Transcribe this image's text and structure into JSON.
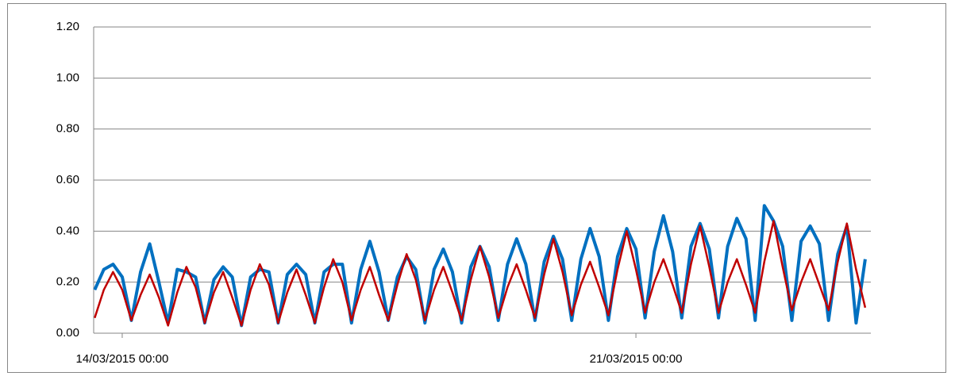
{
  "chart_data": {
    "type": "line",
    "x": [
      "13/03/2015 15:00",
      "13/03/2015 18:00",
      "13/03/2015 21:00",
      "14/03/2015 00:00",
      "14/03/2015 03:00",
      "14/03/2015 06:00",
      "14/03/2015 09:00",
      "14/03/2015 12:00",
      "14/03/2015 15:00",
      "14/03/2015 18:00",
      "14/03/2015 21:00",
      "15/03/2015 00:00",
      "15/03/2015 03:00",
      "15/03/2015 06:00",
      "15/03/2015 09:00",
      "15/03/2015 12:00",
      "15/03/2015 15:00",
      "15/03/2015 18:00",
      "15/03/2015 21:00",
      "16/03/2015 00:00",
      "16/03/2015 03:00",
      "16/03/2015 06:00",
      "16/03/2015 09:00",
      "16/03/2015 12:00",
      "16/03/2015 15:00",
      "16/03/2015 18:00",
      "16/03/2015 21:00",
      "17/03/2015 00:00",
      "17/03/2015 03:00",
      "17/03/2015 06:00",
      "17/03/2015 09:00",
      "17/03/2015 12:00",
      "17/03/2015 15:00",
      "17/03/2015 18:00",
      "17/03/2015 21:00",
      "18/03/2015 00:00",
      "18/03/2015 03:00",
      "18/03/2015 06:00",
      "18/03/2015 09:00",
      "18/03/2015 12:00",
      "18/03/2015 15:00",
      "18/03/2015 18:00",
      "18/03/2015 21:00",
      "19/03/2015 00:00",
      "19/03/2015 03:00",
      "19/03/2015 06:00",
      "19/03/2015 09:00",
      "19/03/2015 12:00",
      "19/03/2015 15:00",
      "19/03/2015 18:00",
      "19/03/2015 21:00",
      "20/03/2015 00:00",
      "20/03/2015 03:00",
      "20/03/2015 06:00",
      "20/03/2015 09:00",
      "20/03/2015 12:00",
      "20/03/2015 15:00",
      "20/03/2015 18:00",
      "20/03/2015 21:00",
      "21/03/2015 00:00",
      "21/03/2015 03:00",
      "21/03/2015 06:00",
      "21/03/2015 09:00",
      "21/03/2015 12:00",
      "21/03/2015 15:00",
      "21/03/2015 18:00",
      "21/03/2015 21:00",
      "22/03/2015 00:00",
      "22/03/2015 03:00",
      "22/03/2015 06:00",
      "22/03/2015 09:00",
      "22/03/2015 12:00",
      "22/03/2015 15:00",
      "22/03/2015 18:00",
      "22/03/2015 21:00",
      "23/03/2015 00:00",
      "23/03/2015 03:00",
      "23/03/2015 06:00",
      "23/03/2015 09:00",
      "23/03/2015 12:00",
      "23/03/2015 15:00",
      "23/03/2015 18:00",
      "23/03/2015 21:00",
      "24/03/2015 00:00",
      "24/03/2015 03:00"
    ],
    "series": [
      {
        "color": "#0070c0",
        "width": 4,
        "values": [
          0.17,
          0.25,
          0.27,
          0.22,
          0.05,
          0.24,
          0.35,
          0.2,
          0.04,
          0.25,
          0.24,
          0.22,
          0.04,
          0.21,
          0.26,
          0.22,
          0.03,
          0.22,
          0.25,
          0.24,
          0.04,
          0.23,
          0.27,
          0.23,
          0.04,
          0.24,
          0.27,
          0.27,
          0.04,
          0.25,
          0.36,
          0.24,
          0.05,
          0.22,
          0.3,
          0.25,
          0.04,
          0.25,
          0.33,
          0.24,
          0.04,
          0.26,
          0.34,
          0.26,
          0.05,
          0.27,
          0.37,
          0.27,
          0.05,
          0.28,
          0.38,
          0.29,
          0.05,
          0.29,
          0.41,
          0.3,
          0.05,
          0.3,
          0.41,
          0.33,
          0.06,
          0.32,
          0.46,
          0.32,
          0.06,
          0.34,
          0.43,
          0.33,
          0.06,
          0.34,
          0.45,
          0.37,
          0.05,
          0.5,
          0.44,
          0.34,
          0.05,
          0.36,
          0.42,
          0.35,
          0.05,
          0.31,
          0.42,
          0.04,
          0.29
        ]
      },
      {
        "color": "#c00000",
        "width": 2.5,
        "values": [
          0.06,
          0.17,
          0.24,
          0.17,
          0.05,
          0.15,
          0.23,
          0.14,
          0.03,
          0.16,
          0.26,
          0.18,
          0.04,
          0.16,
          0.24,
          0.14,
          0.03,
          0.17,
          0.27,
          0.19,
          0.04,
          0.16,
          0.25,
          0.15,
          0.04,
          0.18,
          0.29,
          0.2,
          0.05,
          0.17,
          0.26,
          0.15,
          0.05,
          0.19,
          0.31,
          0.21,
          0.05,
          0.17,
          0.26,
          0.16,
          0.05,
          0.21,
          0.34,
          0.22,
          0.06,
          0.18,
          0.27,
          0.17,
          0.06,
          0.23,
          0.37,
          0.24,
          0.07,
          0.19,
          0.28,
          0.18,
          0.07,
          0.25,
          0.4,
          0.25,
          0.08,
          0.2,
          0.29,
          0.19,
          0.08,
          0.27,
          0.42,
          0.26,
          0.08,
          0.2,
          0.29,
          0.19,
          0.08,
          0.28,
          0.44,
          0.26,
          0.09,
          0.2,
          0.29,
          0.19,
          0.09,
          0.28,
          0.43,
          0.25,
          0.1
        ]
      }
    ],
    "xlim": [
      "13/03/2015 14:40",
      "24/03/2015 04:50"
    ],
    "xticks": [
      "14/03/2015 00:00",
      "21/03/2015 00:00"
    ],
    "ylim": [
      0,
      1.2
    ],
    "yticks": [
      {
        "value": 0,
        "label": "0.00"
      },
      {
        "value": 0.2,
        "label": "0.20"
      },
      {
        "value": 0.4,
        "label": "0.40"
      },
      {
        "value": 0.6,
        "label": "0.60"
      },
      {
        "value": 0.8,
        "label": "0.80"
      },
      {
        "value": 1,
        "label": "1.00"
      },
      {
        "value": 1.2,
        "label": "1.20"
      }
    ],
    "grid": true
  }
}
